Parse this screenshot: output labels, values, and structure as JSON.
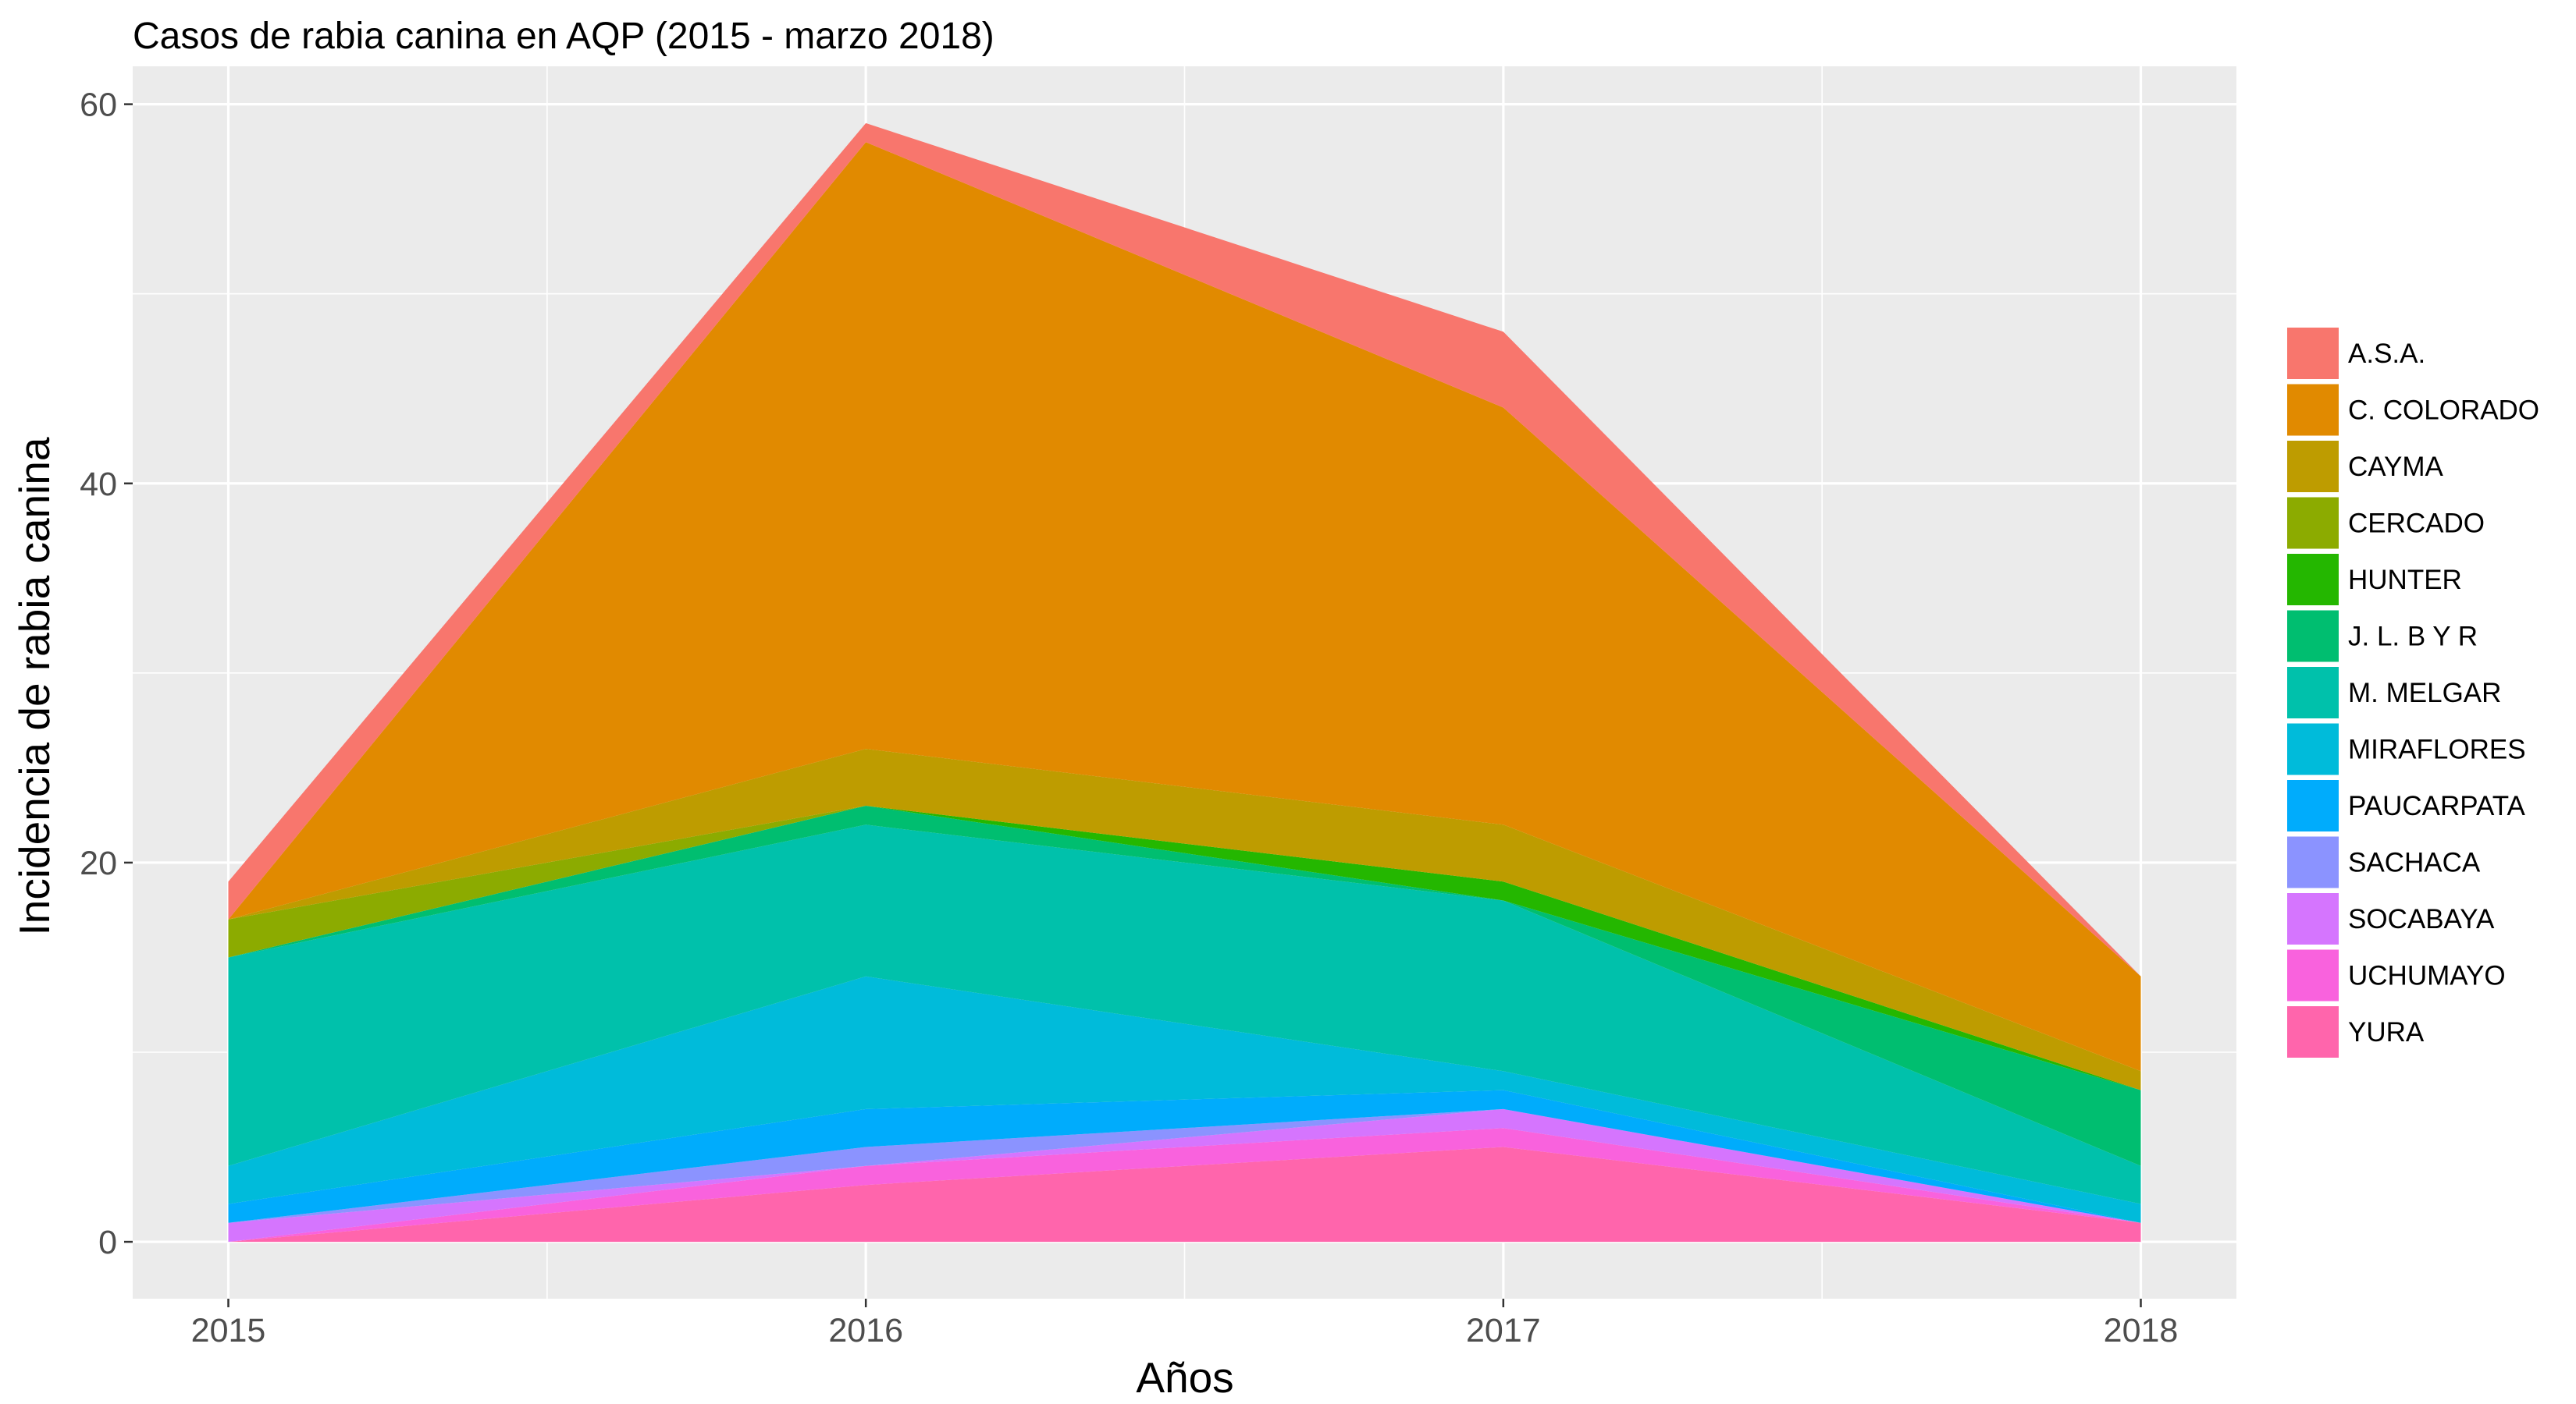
{
  "chart_data": {
    "type": "area",
    "stacked": true,
    "title": "Casos de rabia canina en AQP (2015 - marzo 2018)",
    "xlabel": "Años",
    "ylabel": "Incidencia de rabia canina",
    "x": [
      2015,
      2016,
      2017,
      2018
    ],
    "x_tick_labels": [
      "2015",
      "2016",
      "2017",
      "2018"
    ],
    "y_ticks": [
      0,
      20,
      40,
      60
    ],
    "xlim": [
      2014.85,
      2018.15
    ],
    "ylim": [
      -3,
      62
    ],
    "grid": true,
    "panel_background": "#ebebeb",
    "legend_position": "right",
    "series": [
      {
        "name": "A.S.A.",
        "color": "#F8766D",
        "values": [
          2,
          1,
          4,
          0
        ]
      },
      {
        "name": "C. COLORADO",
        "color": "#E18A00",
        "values": [
          0,
          32,
          22,
          5
        ]
      },
      {
        "name": "CAYMA",
        "color": "#BE9C00",
        "values": [
          0,
          3,
          3,
          1
        ]
      },
      {
        "name": "CERCADO",
        "color": "#8CAB00",
        "values": [
          2,
          0,
          0,
          0
        ]
      },
      {
        "name": "HUNTER",
        "color": "#24B700",
        "values": [
          0,
          0,
          1,
          0
        ]
      },
      {
        "name": "J. L. B Y R",
        "color": "#00BE70",
        "values": [
          0,
          1,
          0,
          4
        ]
      },
      {
        "name": "M. MELGAR",
        "color": "#00C1AB",
        "values": [
          11,
          8,
          9,
          2
        ]
      },
      {
        "name": "MIRAFLORES",
        "color": "#00BBDA",
        "values": [
          2,
          7,
          1,
          1
        ]
      },
      {
        "name": "PAUCARPATA",
        "color": "#00ACFC",
        "values": [
          1,
          2,
          1,
          0
        ]
      },
      {
        "name": "SACHACA",
        "color": "#8B93FF",
        "values": [
          0,
          1,
          0,
          0
        ]
      },
      {
        "name": "SOCABAYA",
        "color": "#D575FE",
        "values": [
          1,
          0,
          1,
          0
        ]
      },
      {
        "name": "UCHUMAYO",
        "color": "#F962DD",
        "values": [
          0,
          1,
          1,
          0
        ]
      },
      {
        "name": "YURA",
        "color": "#FF65AC",
        "values": [
          0,
          3,
          5,
          1
        ]
      }
    ]
  }
}
